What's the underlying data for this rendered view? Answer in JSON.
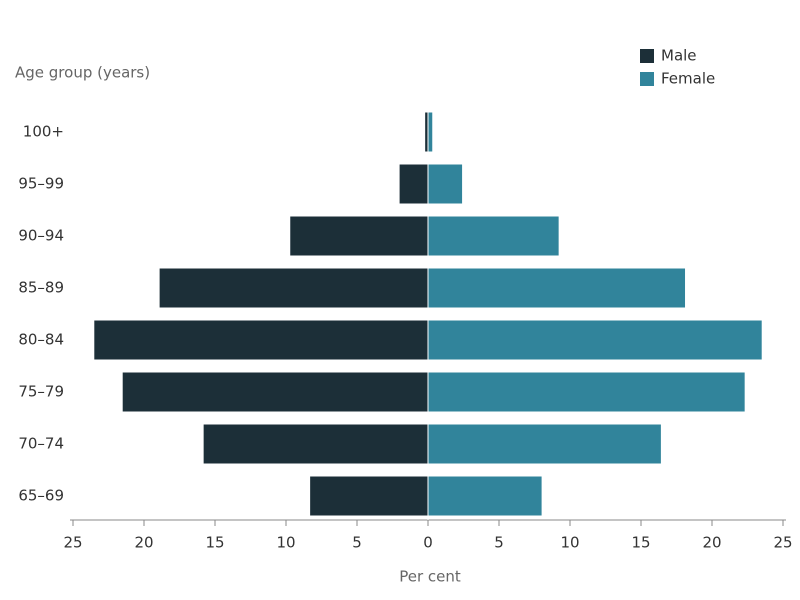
{
  "chart_data": {
    "type": "pyramid",
    "y_axis_title": "Age group (years)",
    "x_axis_title": "Per cent",
    "categories": [
      "100+",
      "95–99",
      "90–94",
      "85–89",
      "80–84",
      "75–79",
      "70–74",
      "65–69"
    ],
    "series": [
      {
        "name": "Male",
        "color": "#1c2f38",
        "values": [
          -0.2,
          -2.0,
          -9.7,
          -18.9,
          -23.5,
          -21.5,
          -15.8,
          -8.3
        ]
      },
      {
        "name": "Female",
        "color": "#31849b",
        "values": [
          0.3,
          2.4,
          9.2,
          18.1,
          23.5,
          22.3,
          16.4,
          8.0
        ]
      }
    ],
    "xlim": [
      -25,
      25
    ],
    "xticks": [
      {
        "value": -25,
        "label": "25"
      },
      {
        "value": -20,
        "label": "20"
      },
      {
        "value": -15,
        "label": "15"
      },
      {
        "value": -10,
        "label": "10"
      },
      {
        "value": -5,
        "label": "5"
      },
      0,
      5,
      10,
      15,
      20,
      25
    ],
    "legend": "top-right"
  }
}
